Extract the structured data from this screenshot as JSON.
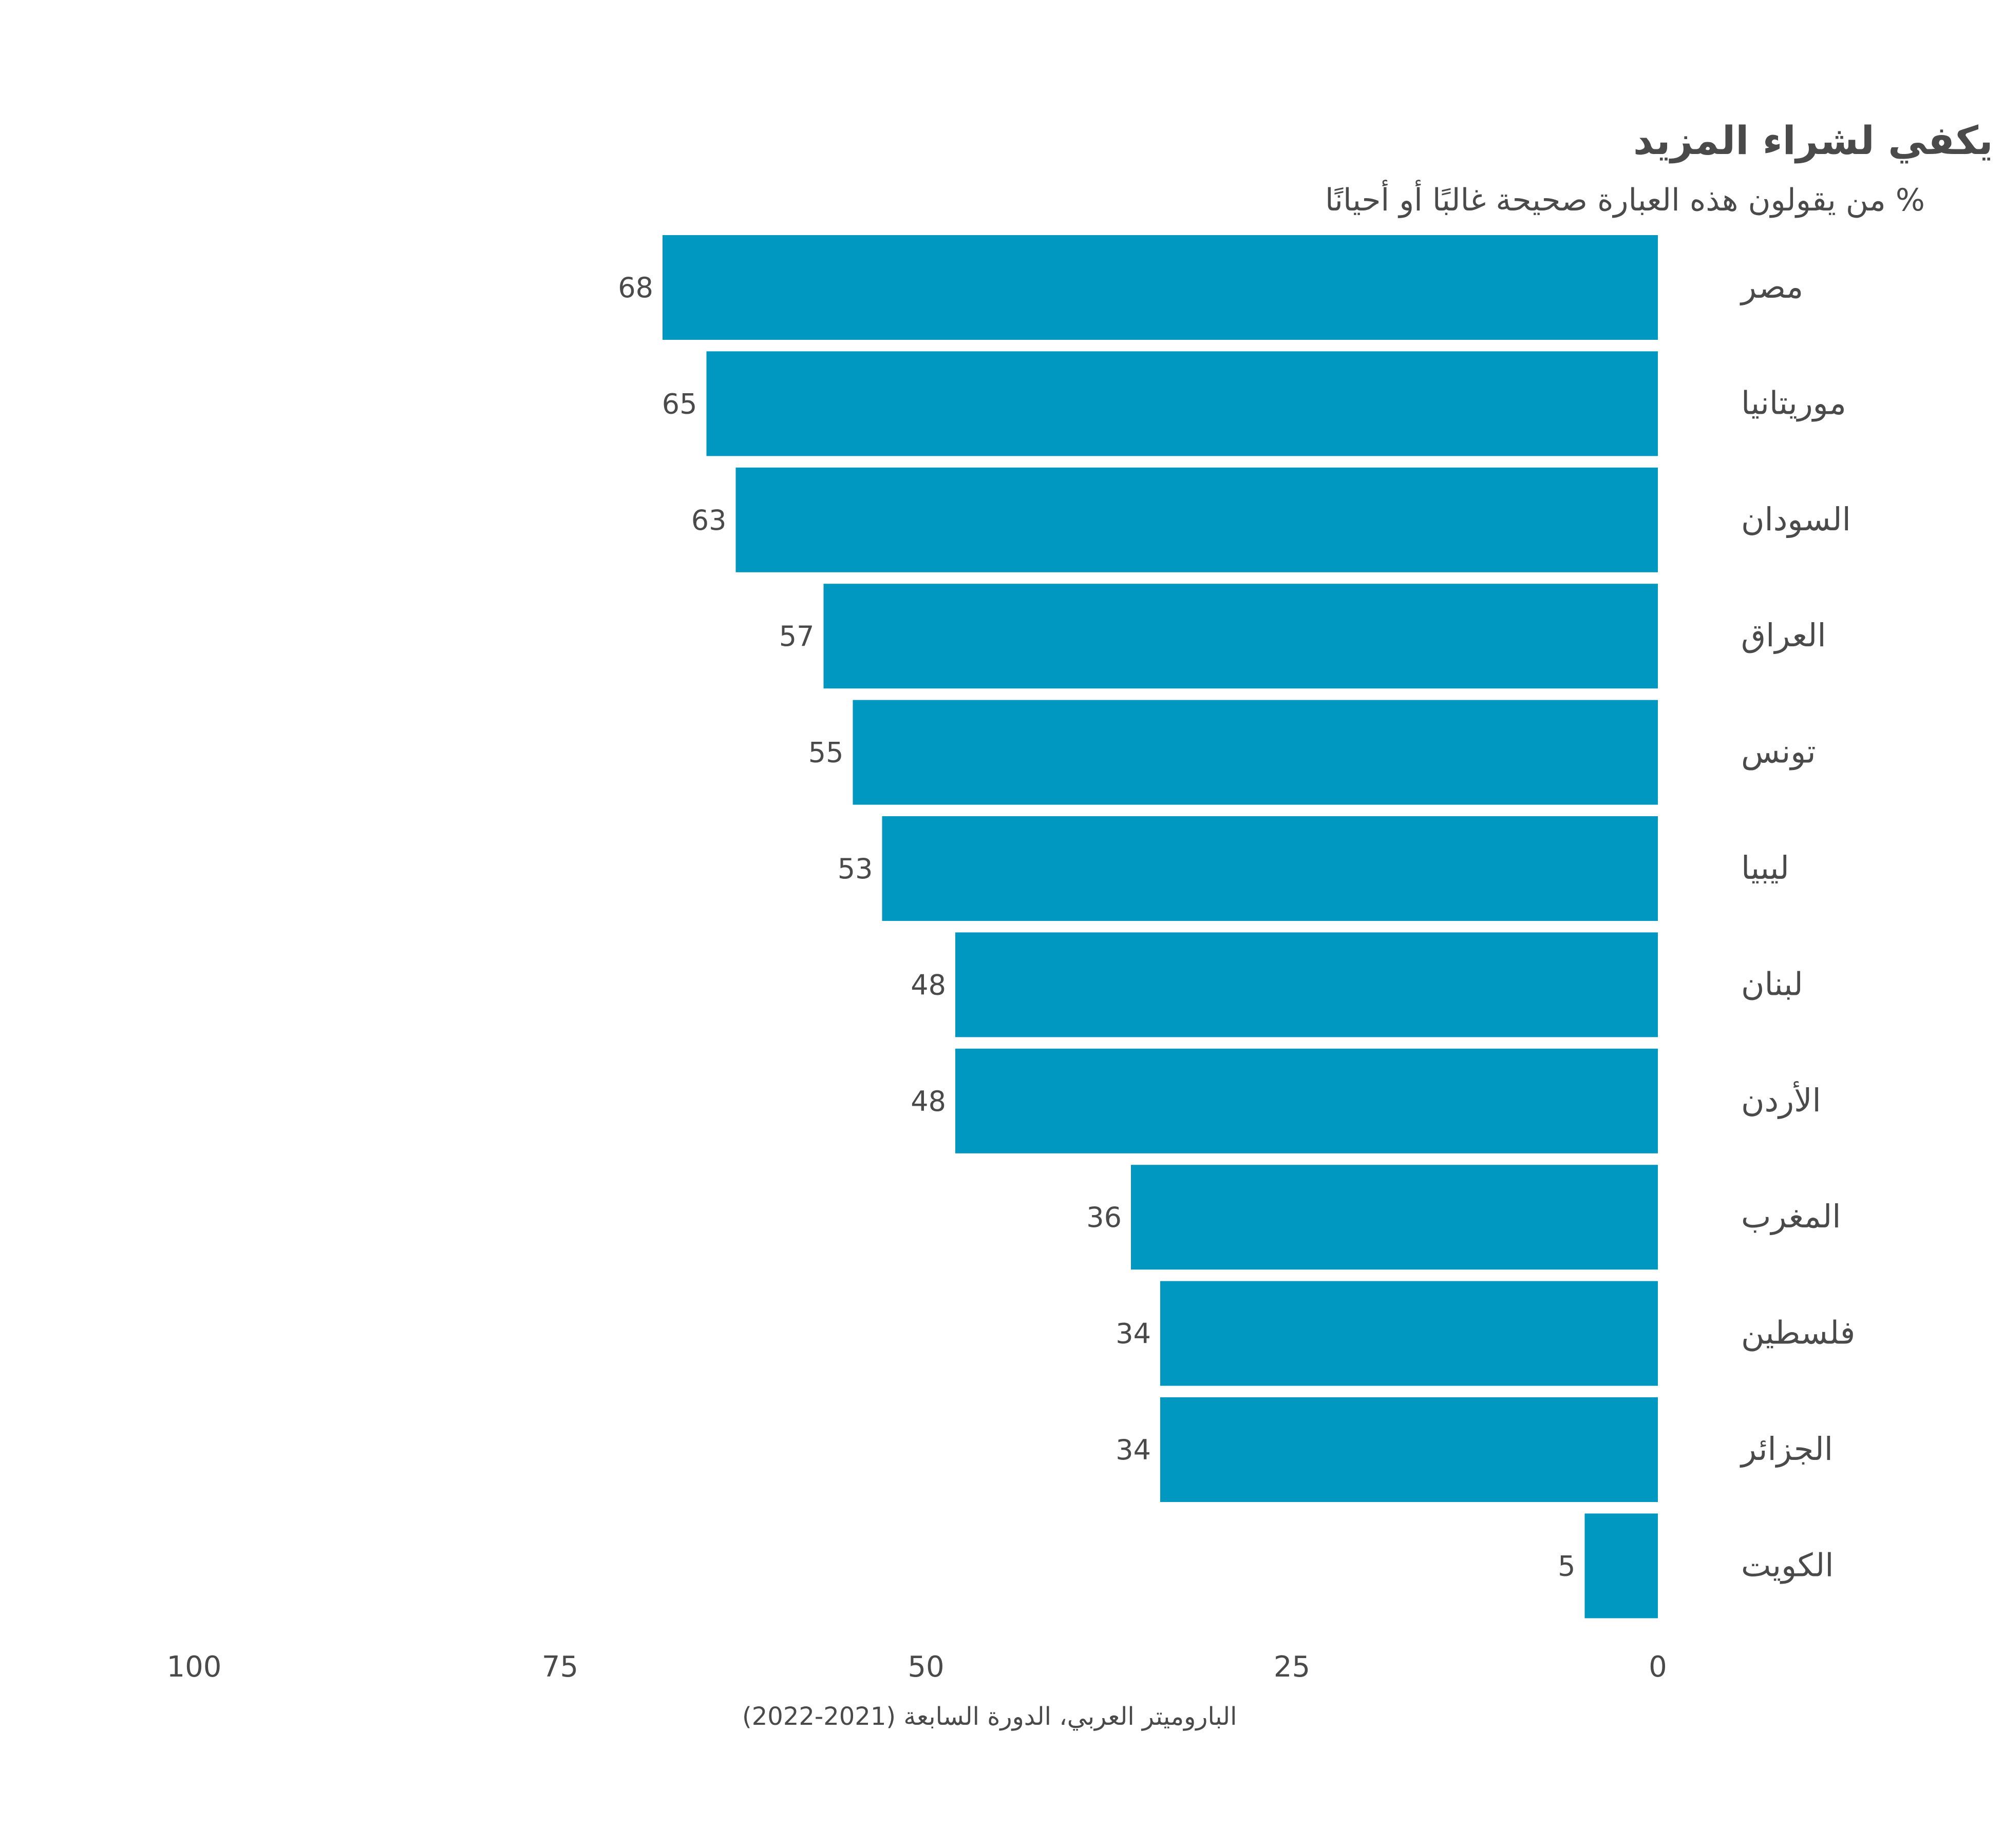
{
  "chart_data": {
    "type": "bar",
    "orientation": "horizontal",
    "direction": "right-to-left",
    "title": "نفد الغذاء الذي اشتريناه ولم يكن لدينا من المال ما يكفي لشراء المزيد",
    "subtitle": "% من يقولون هذه العبارة صحيحة غالبًا أو أحيانًا",
    "categories": [
      "مصر",
      "موريتانيا",
      "السودان",
      "العراق",
      "تونس",
      "ليبيا",
      "لبنان",
      "الأردن",
      "المغرب",
      "فلسطين",
      "الجزائر",
      "الكويت"
    ],
    "values": [
      68,
      65,
      63,
      57,
      55,
      53,
      48,
      48,
      36,
      34,
      34,
      5
    ],
    "xlim": [
      0,
      100
    ],
    "ticks": [
      100,
      75,
      50,
      25,
      0
    ],
    "grid": false,
    "legend": "none",
    "bar_color": "#0097c1",
    "source": "الباروميتر العربي، الدورة السابعة (2021-2022)"
  }
}
